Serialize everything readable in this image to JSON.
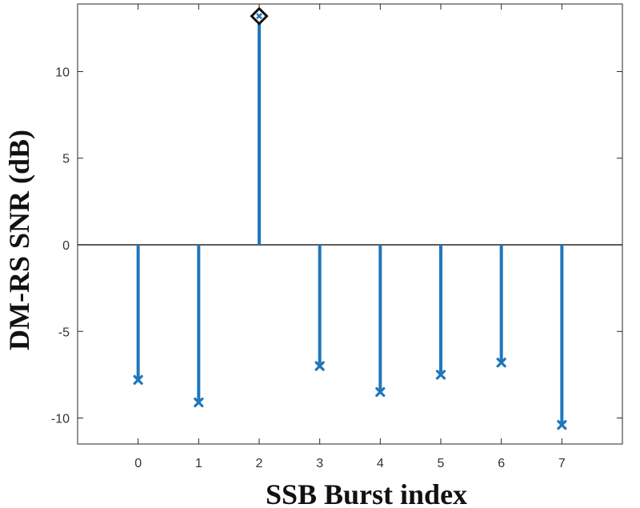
{
  "chart_data": {
    "type": "stem",
    "title": "",
    "xlabel": "SSB Burst index",
    "ylabel": "DM-RS SNR (dB)",
    "xlim": [
      -1,
      8
    ],
    "ylim": [
      -11.5,
      13.9
    ],
    "xticks": [
      0,
      1,
      2,
      3,
      4,
      5,
      6,
      7
    ],
    "yticks": [
      -10,
      -5,
      0,
      5,
      10
    ],
    "grid": false,
    "baseline": 0,
    "series": [
      {
        "x": [
          0,
          1,
          2,
          3,
          4,
          5,
          6,
          7
        ],
        "values": [
          -7.8,
          -9.1,
          13.2,
          -7.0,
          -8.5,
          -7.5,
          -6.8,
          -10.4
        ],
        "color": "#1f77bd",
        "marker": "x"
      }
    ],
    "highlight": {
      "x": 2,
      "value": 13.2,
      "marker": "diamond",
      "color": "#111111"
    }
  }
}
